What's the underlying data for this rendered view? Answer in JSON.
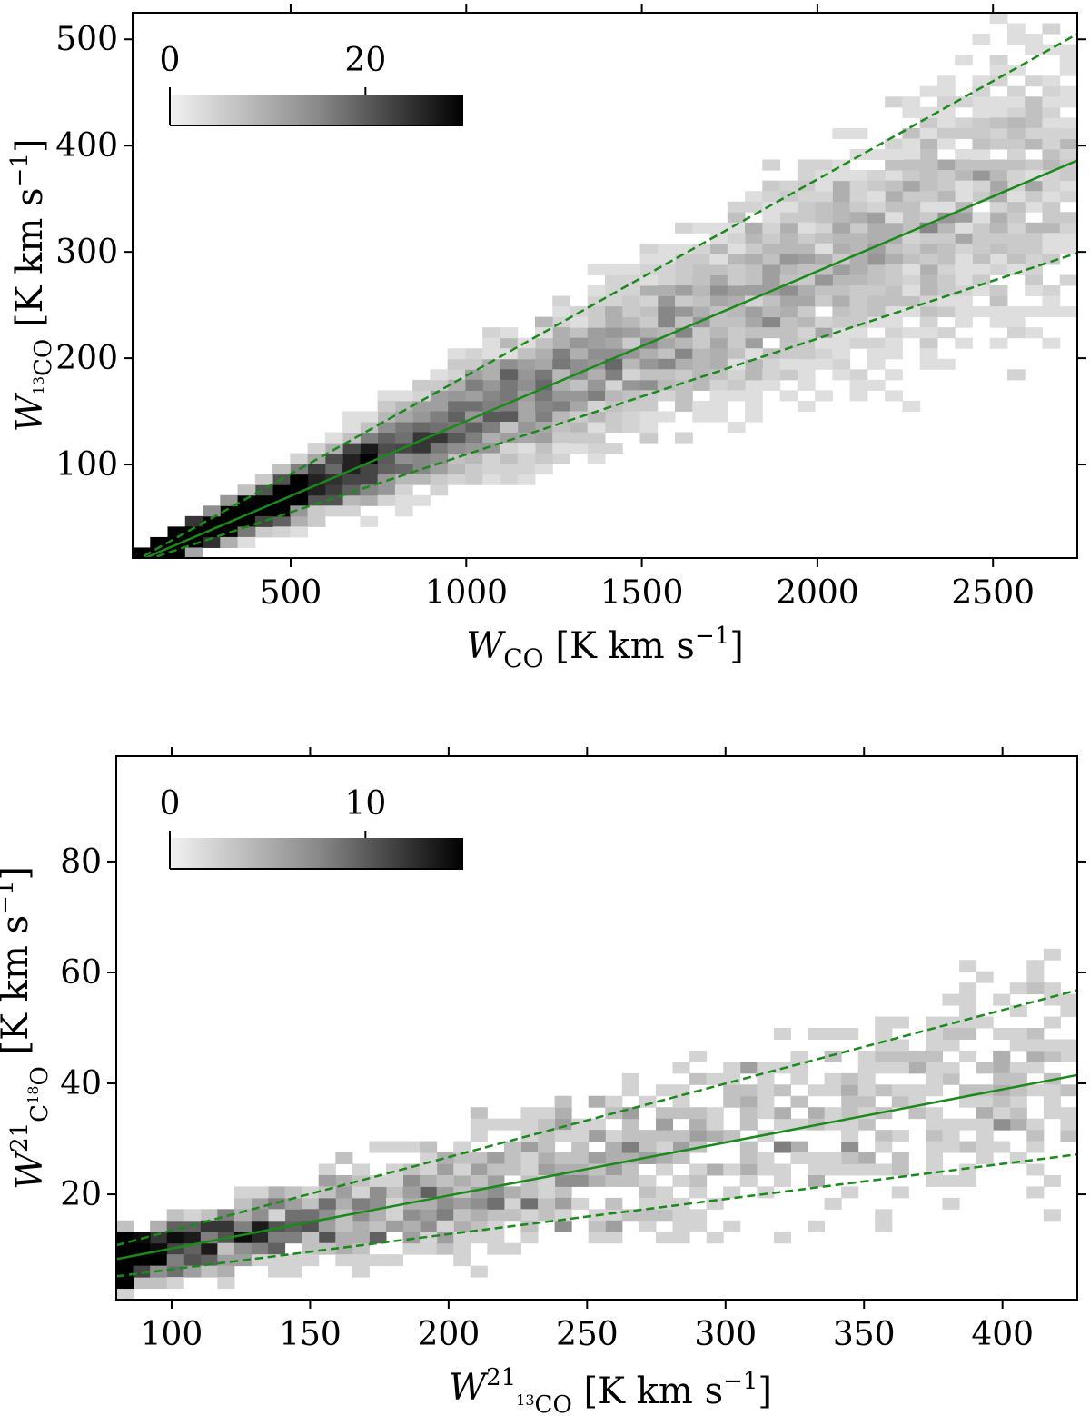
{
  "chart_data": [
    {
      "type": "heatmap",
      "xlabel": {
        "symbol": "W",
        "subscript": "CO",
        "unit": " [K km s",
        "unit_exp": "−1",
        "unit_close": "]"
      },
      "ylabel": {
        "symbol": "W",
        "sub_sup": "13",
        "subscript": "CO",
        "unit": " [K km s",
        "unit_exp": "−1",
        "unit_close": "]"
      },
      "xlim": [
        50,
        2740
      ],
      "ylim": [
        12,
        525
      ],
      "xticks": [
        500,
        1000,
        1500,
        2000,
        2500
      ],
      "xtick_labels": [
        "500",
        "1000",
        "1500",
        "2000",
        "2500"
      ],
      "yticks": [
        100,
        200,
        300,
        400,
        500
      ],
      "ytick_labels": [
        "100",
        "200",
        "300",
        "400",
        "500"
      ],
      "colorbar": {
        "min": 0,
        "max": 30,
        "tick_values": [
          0,
          20
        ],
        "tick_labels": [
          "0",
          "20"
        ],
        "cmap": "gray_r",
        "location": "upper left"
      },
      "grid": false,
      "fit_lines": [
        {
          "style": "solid",
          "color": "#1a8a1a",
          "x": [
            50,
            2740
          ],
          "y": [
            7,
            386
          ]
        },
        {
          "style": "dashed",
          "color": "#1a8a1a",
          "x": [
            50,
            2740
          ],
          "y": [
            8,
            505
          ]
        },
        {
          "style": "dashed",
          "color": "#1a8a1a",
          "x": [
            50,
            2740
          ],
          "y": [
            6,
            299
          ]
        }
      ],
      "density_model": {
        "slope": 0.139,
        "intercept": 2,
        "scatter_frac": 0.18,
        "x_min": 60,
        "x_max": 2720,
        "x_bins": 54,
        "y_bins": 52,
        "peak_x": 400,
        "seed": 7
      }
    },
    {
      "type": "heatmap",
      "xlabel": {
        "symbol": "W",
        "superscript": "21",
        "sub_sup": "13",
        "subscript": "CO",
        "unit": " [K km s",
        "unit_exp": "−1",
        "unit_close": "]"
      },
      "ylabel": {
        "symbol": "W",
        "superscript": "21",
        "subscript": "C",
        "sub_sup": "18",
        "subscript2": "O",
        "unit": " [K km s",
        "unit_exp": "−1",
        "unit_close": "]"
      },
      "xlim": [
        80,
        427
      ],
      "ylim": [
        1,
        99
      ],
      "xticks": [
        100,
        150,
        200,
        250,
        300,
        350,
        400
      ],
      "xtick_labels": [
        "100",
        "150",
        "200",
        "250",
        "300",
        "350",
        "400"
      ],
      "yticks": [
        20,
        40,
        60,
        80
      ],
      "ytick_labels": [
        "20",
        "40",
        "60",
        "80"
      ],
      "colorbar": {
        "min": 0,
        "max": 15,
        "tick_values": [
          0,
          10
        ],
        "tick_labels": [
          "0",
          "10"
        ],
        "cmap": "gray_r",
        "location": "upper left"
      },
      "grid": false,
      "fit_lines": [
        {
          "style": "solid",
          "color": "#1a8a1a",
          "x": [
            80,
            427
          ],
          "y": [
            8.3,
            41.5
          ]
        },
        {
          "style": "dashed",
          "color": "#1a8a1a",
          "x": [
            80,
            427
          ],
          "y": [
            10.8,
            56.8
          ]
        },
        {
          "style": "dashed",
          "color": "#1a8a1a",
          "x": [
            80,
            427
          ],
          "y": [
            5.2,
            27.2
          ]
        }
      ],
      "density_model": {
        "slope": 0.096,
        "intercept": 0.6,
        "scatter_frac": 0.25,
        "x_min": 80,
        "x_max": 425,
        "x_bins": 57,
        "y_bins": 48,
        "peak_x": 90,
        "seed": 11
      }
    }
  ]
}
